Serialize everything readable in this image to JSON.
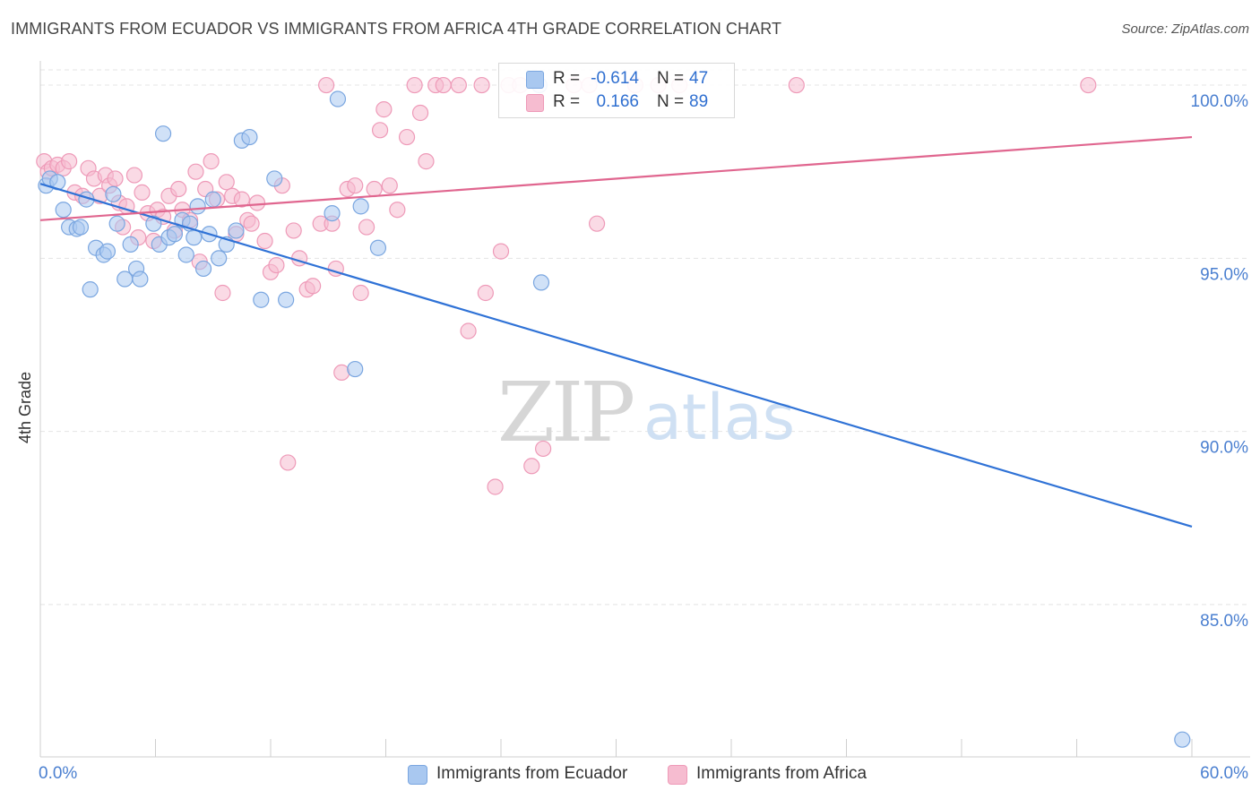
{
  "header": {
    "title": "IMMIGRANTS FROM ECUADOR VS IMMIGRANTS FROM AFRICA 4TH GRADE CORRELATION CHART",
    "source": "Source: ZipAtlas.com"
  },
  "legend": {
    "rows": [
      {
        "r_label": "R =",
        "r_value": "-0.614",
        "n_label": "N =",
        "n_value": "47"
      },
      {
        "r_label": "R =",
        "r_value": "0.166",
        "n_label": "N =",
        "n_value": "89"
      }
    ]
  },
  "bottom_legend": {
    "items": [
      "Immigrants from Ecuador",
      "Immigrants from Africa"
    ]
  },
  "colors": {
    "ecuador_fill": "#a9c8f0",
    "ecuador_stroke": "#7aa6e0",
    "ecuador_line": "#2f72d6",
    "africa_fill": "#f6bcd0",
    "africa_stroke": "#ee9ab8",
    "africa_line": "#e0668f",
    "tick_label": "#4a7fd0",
    "grid": "#e4e4e4"
  },
  "watermark": {
    "zip": "ZIP",
    "atlas": "atlas"
  },
  "chart_data": {
    "type": "scatter",
    "title": "IMMIGRANTS FROM ECUADOR VS IMMIGRANTS FROM AFRICA 4TH GRADE CORRELATION CHART",
    "xlabel": "",
    "ylabel": "4th Grade",
    "xlim": [
      0,
      60
    ],
    "ylim": [
      80.6,
      100.7
    ],
    "x_tick_labels": [
      "0.0%",
      "60.0%"
    ],
    "y_ticks": [
      85,
      90,
      95,
      100
    ],
    "y_tick_labels": [
      "85.0%",
      "90.0%",
      "95.0%",
      "100.0%"
    ],
    "grid": true,
    "legend_position": "top-center",
    "series": [
      {
        "name": "Immigrants from Ecuador",
        "color": "#a9c8f0",
        "trend": {
          "x": [
            0,
            60
          ],
          "y": [
            97.15,
            87.25
          ]
        },
        "points": [
          [
            0.3,
            97.1
          ],
          [
            0.5,
            97.3
          ],
          [
            0.9,
            97.2
          ],
          [
            1.2,
            96.4
          ],
          [
            1.5,
            95.9
          ],
          [
            1.9,
            95.85
          ],
          [
            2.4,
            96.7
          ],
          [
            2.6,
            94.1
          ],
          [
            2.9,
            95.3
          ],
          [
            3.3,
            95.1
          ],
          [
            3.5,
            95.2
          ],
          [
            3.8,
            96.85
          ],
          [
            4.0,
            96.0
          ],
          [
            4.4,
            94.4
          ],
          [
            4.7,
            95.4
          ],
          [
            5.0,
            94.7
          ],
          [
            5.2,
            94.4
          ],
          [
            5.9,
            96.0
          ],
          [
            6.2,
            95.4
          ],
          [
            6.4,
            98.6
          ],
          [
            6.7,
            95.6
          ],
          [
            7.0,
            95.7
          ],
          [
            7.4,
            96.1
          ],
          [
            7.6,
            95.1
          ],
          [
            7.8,
            96.0
          ],
          [
            8.0,
            95.6
          ],
          [
            8.2,
            96.5
          ],
          [
            8.5,
            94.7
          ],
          [
            8.8,
            95.7
          ],
          [
            9.0,
            96.7
          ],
          [
            9.3,
            95.0
          ],
          [
            9.7,
            95.4
          ],
          [
            10.2,
            95.8
          ],
          [
            10.5,
            98.4
          ],
          [
            10.9,
            98.5
          ],
          [
            11.5,
            93.8
          ],
          [
            12.2,
            97.3
          ],
          [
            12.8,
            93.8
          ],
          [
            15.2,
            96.3
          ],
          [
            15.5,
            99.6
          ],
          [
            16.4,
            91.8
          ],
          [
            16.7,
            96.5
          ],
          [
            17.6,
            95.3
          ],
          [
            26.1,
            94.3
          ],
          [
            59.5,
            81.1
          ],
          [
            26.0,
            100.0
          ],
          [
            2.1,
            95.9
          ]
        ]
      },
      {
        "name": "Immigrants from Africa",
        "color": "#f6bcd0",
        "trend": {
          "x": [
            0,
            60
          ],
          "y": [
            96.1,
            98.5
          ]
        },
        "points": [
          [
            0.2,
            97.8
          ],
          [
            0.4,
            97.5
          ],
          [
            0.6,
            97.6
          ],
          [
            0.9,
            97.7
          ],
          [
            1.2,
            97.6
          ],
          [
            1.5,
            97.8
          ],
          [
            1.8,
            96.9
          ],
          [
            2.2,
            96.8
          ],
          [
            2.5,
            97.6
          ],
          [
            2.8,
            97.3
          ],
          [
            3.1,
            96.8
          ],
          [
            3.4,
            97.4
          ],
          [
            3.6,
            97.1
          ],
          [
            3.9,
            97.3
          ],
          [
            4.1,
            96.6
          ],
          [
            4.3,
            95.9
          ],
          [
            4.5,
            96.5
          ],
          [
            4.9,
            97.4
          ],
          [
            5.1,
            95.6
          ],
          [
            5.3,
            96.9
          ],
          [
            5.6,
            96.3
          ],
          [
            5.9,
            95.5
          ],
          [
            6.1,
            96.4
          ],
          [
            6.4,
            96.2
          ],
          [
            6.7,
            96.8
          ],
          [
            7.0,
            95.8
          ],
          [
            7.2,
            97.0
          ],
          [
            7.4,
            96.4
          ],
          [
            7.8,
            96.1
          ],
          [
            8.1,
            97.5
          ],
          [
            8.3,
            94.9
          ],
          [
            8.6,
            97.0
          ],
          [
            8.9,
            97.8
          ],
          [
            9.2,
            96.7
          ],
          [
            9.5,
            94.0
          ],
          [
            9.7,
            97.2
          ],
          [
            10.0,
            96.8
          ],
          [
            10.2,
            95.7
          ],
          [
            10.5,
            96.7
          ],
          [
            10.8,
            96.1
          ],
          [
            11.0,
            96.0
          ],
          [
            11.3,
            96.6
          ],
          [
            11.7,
            95.5
          ],
          [
            12.0,
            94.6
          ],
          [
            12.3,
            94.8
          ],
          [
            12.6,
            97.1
          ],
          [
            12.9,
            89.1
          ],
          [
            13.2,
            95.8
          ],
          [
            13.5,
            95.0
          ],
          [
            13.9,
            94.1
          ],
          [
            14.2,
            94.2
          ],
          [
            14.6,
            96.0
          ],
          [
            14.9,
            100.0
          ],
          [
            15.2,
            96.0
          ],
          [
            15.4,
            94.7
          ],
          [
            15.7,
            91.7
          ],
          [
            16.0,
            97.0
          ],
          [
            16.4,
            97.1
          ],
          [
            16.7,
            94.0
          ],
          [
            17.0,
            95.9
          ],
          [
            17.4,
            97.0
          ],
          [
            17.7,
            98.7
          ],
          [
            17.9,
            99.3
          ],
          [
            18.2,
            97.1
          ],
          [
            18.6,
            96.4
          ],
          [
            19.1,
            98.5
          ],
          [
            19.5,
            100.0
          ],
          [
            19.8,
            99.2
          ],
          [
            20.1,
            97.8
          ],
          [
            20.6,
            100.0
          ],
          [
            21.0,
            100.0
          ],
          [
            21.8,
            100.0
          ],
          [
            22.3,
            92.9
          ],
          [
            23.0,
            100.0
          ],
          [
            23.2,
            94.0
          ],
          [
            23.7,
            88.4
          ],
          [
            24.0,
            95.2
          ],
          [
            24.4,
            100.0
          ],
          [
            25.0,
            100.0
          ],
          [
            25.6,
            89.0
          ],
          [
            26.2,
            89.5
          ],
          [
            29.0,
            96.0
          ],
          [
            31.0,
            100.0
          ],
          [
            32.2,
            100.0
          ],
          [
            33.3,
            100.0
          ],
          [
            39.4,
            100.0
          ],
          [
            54.6,
            100.0
          ],
          [
            27.8,
            100.0
          ],
          [
            28.6,
            100.0
          ]
        ]
      }
    ]
  }
}
